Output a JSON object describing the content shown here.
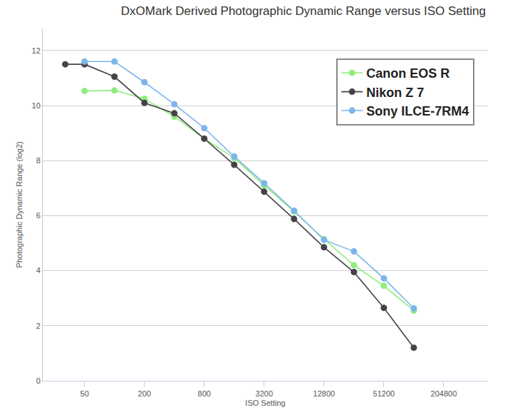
{
  "chart_data": {
    "type": "line",
    "title": "DxOMark Derived Photographic Dynamic Range versus ISO Setting",
    "x_label": "ISO Setting",
    "y_label": "Photographic Dynamic Range (log2)",
    "log": "x",
    "grid": "y",
    "legend": "upper right",
    "marker": "circle",
    "xlim": [
      19,
      570000
    ],
    "xticks": [
      50,
      200,
      800,
      3200,
      12800,
      51200,
      204800
    ],
    "ylim": [
      0,
      12.8
    ],
    "yticks": [
      0,
      2,
      4,
      6,
      8,
      10,
      12
    ],
    "series": [
      {
        "name": "Canon EOS R",
        "color": "#90ed7d",
        "x": [
          50,
          100,
          200,
          400,
          800,
          1600,
          3200,
          6400,
          12800,
          25600,
          51200,
          102400
        ],
        "values": [
          10.53,
          10.55,
          10.25,
          9.6,
          8.8,
          8.1,
          7.1,
          6.15,
          5.15,
          4.2,
          3.45,
          2.55
        ]
      },
      {
        "name": "Nikon Z 7",
        "color": "#434348",
        "x": [
          32,
          50,
          100,
          200,
          400,
          800,
          1600,
          3200,
          6400,
          12800,
          25600,
          51200,
          102400
        ],
        "values": [
          11.5,
          11.5,
          11.05,
          10.1,
          9.72,
          8.8,
          7.85,
          6.87,
          5.88,
          4.85,
          3.95,
          2.65,
          1.2
        ]
      },
      {
        "name": "Sony ILCE-7RM4",
        "color": "#7cb5ec",
        "x": [
          50,
          100,
          200,
          400,
          800,
          1600,
          3200,
          6400,
          12800,
          25600,
          51200,
          102400
        ],
        "values": [
          11.6,
          11.6,
          10.85,
          10.05,
          9.18,
          8.15,
          7.18,
          6.18,
          5.12,
          4.7,
          3.72,
          2.63
        ]
      }
    ]
  }
}
